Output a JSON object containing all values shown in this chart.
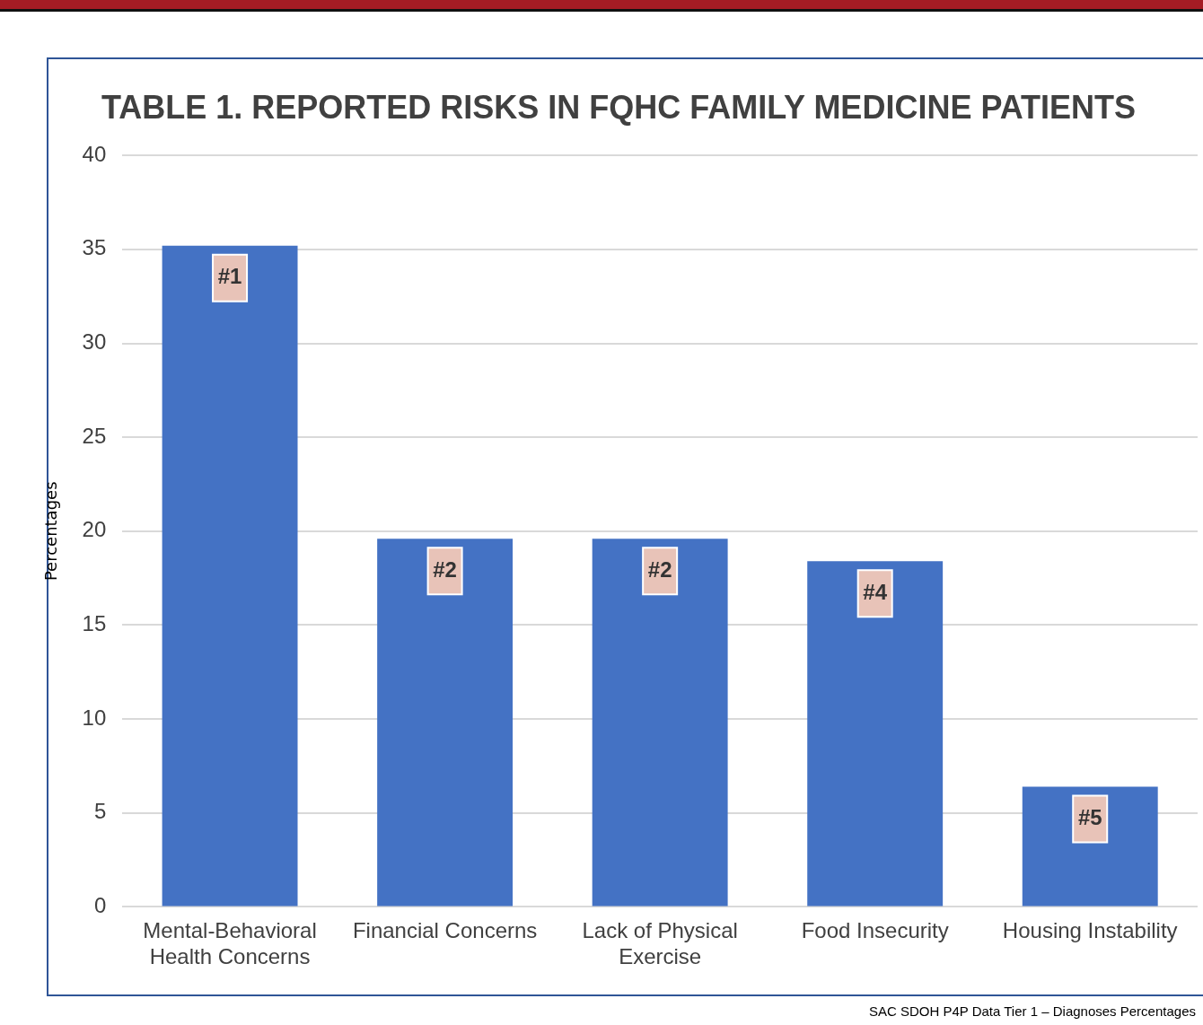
{
  "chart_data": {
    "type": "bar",
    "title": "TABLE 1. REPORTED RISKS IN FQHC FAMILY MEDICINE PATIENTS",
    "ylabel": "Percentages",
    "categories": [
      "Mental-Behavioral Health Concerns",
      "Financial Concerns",
      "Lack of Physical Exercise",
      "Food Insecurity",
      "Housing Instability"
    ],
    "values": [
      35.2,
      19.6,
      19.6,
      18.4,
      6.4
    ],
    "color": "#4472c4",
    "ylim": [
      0,
      40
    ],
    "yticks": [
      0,
      5,
      10,
      15,
      20,
      25,
      30,
      35,
      40
    ],
    "grid": "y",
    "legend": false,
    "annotations": [
      {
        "text": "#1",
        "x": "Mental-Behavioral Health Concerns",
        "y": 35.2
      },
      {
        "text": "#2",
        "x": "Financial Concerns",
        "y": 19.6
      },
      {
        "text": "#2",
        "x": "Lack of Physical Exercise",
        "y": 19.6
      },
      {
        "text": "#4",
        "x": "Food Insecurity",
        "y": 18.4
      },
      {
        "text": "#5",
        "x": "Housing Instability",
        "y": 6.4
      },
      "SAC SDOH P4P Data Tier 1 – Diagnoses Percentages"
    ]
  }
}
